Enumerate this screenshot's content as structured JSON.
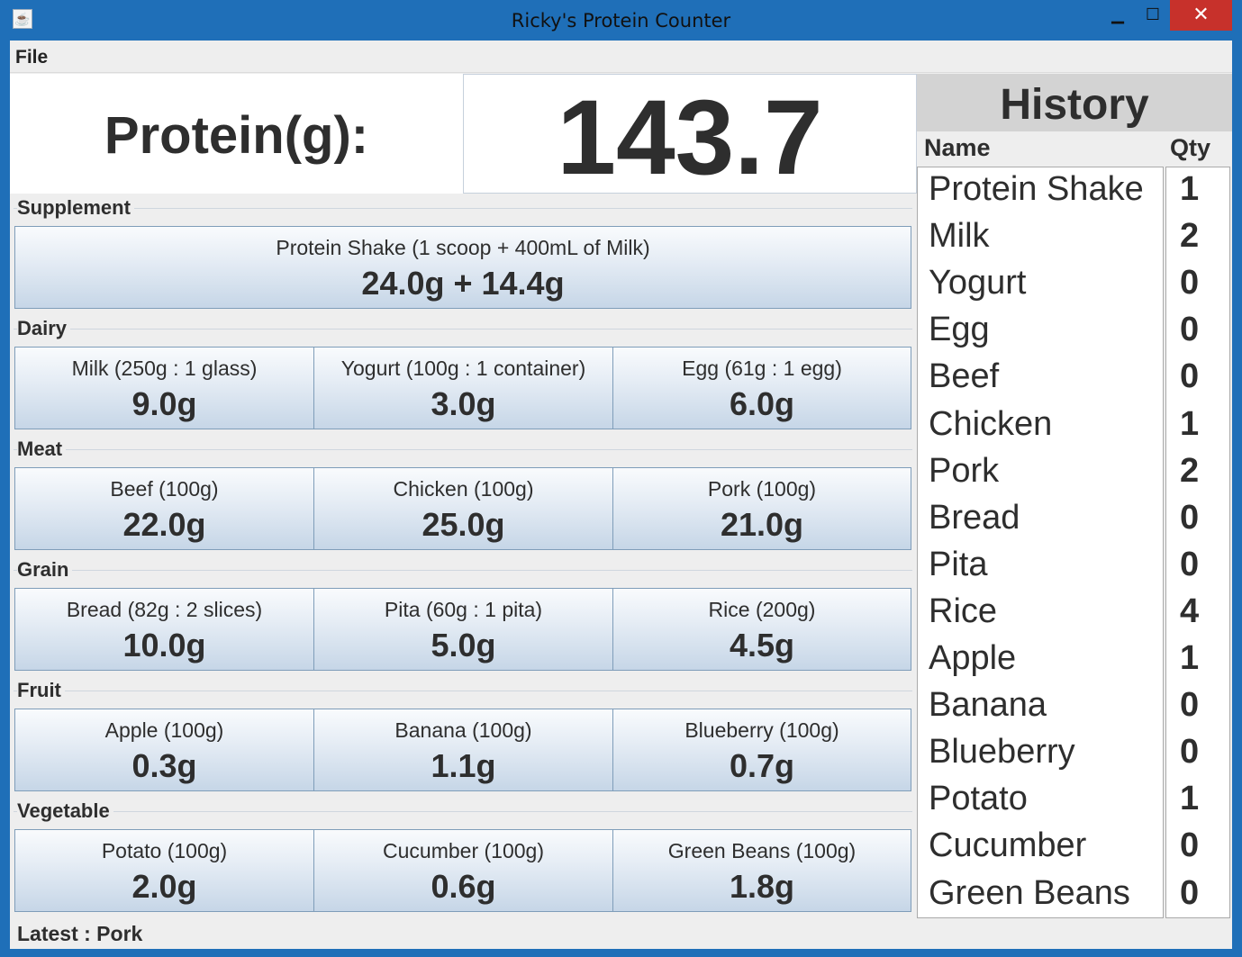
{
  "window": {
    "title": "Ricky's Protein Counter",
    "app_icon": "java-cup-icon"
  },
  "menu": {
    "file": "File"
  },
  "protein": {
    "label": "Protein(g):",
    "value": "143.7"
  },
  "groups": {
    "supplement": {
      "title": "Supplement",
      "items": [
        {
          "name": "Protein Shake (1 scoop + 400mL of Milk)",
          "value": "24.0g + 14.4g"
        }
      ]
    },
    "dairy": {
      "title": "Dairy",
      "items": [
        {
          "name": "Milk (250g : 1 glass)",
          "value": "9.0g"
        },
        {
          "name": "Yogurt (100g : 1 container)",
          "value": "3.0g"
        },
        {
          "name": "Egg (61g : 1 egg)",
          "value": "6.0g"
        }
      ]
    },
    "meat": {
      "title": "Meat",
      "items": [
        {
          "name": "Beef (100g)",
          "value": "22.0g"
        },
        {
          "name": "Chicken (100g)",
          "value": "25.0g"
        },
        {
          "name": "Pork (100g)",
          "value": "21.0g"
        }
      ]
    },
    "grain": {
      "title": "Grain",
      "items": [
        {
          "name": "Bread (82g : 2 slices)",
          "value": "10.0g"
        },
        {
          "name": "Pita (60g : 1 pita)",
          "value": "5.0g"
        },
        {
          "name": "Rice (200g)",
          "value": "4.5g"
        }
      ]
    },
    "fruit": {
      "title": "Fruit",
      "items": [
        {
          "name": "Apple (100g)",
          "value": "0.3g"
        },
        {
          "name": "Banana (100g)",
          "value": "1.1g"
        },
        {
          "name": "Blueberry (100g)",
          "value": "0.7g"
        }
      ]
    },
    "vegetable": {
      "title": "Vegetable",
      "items": [
        {
          "name": "Potato (100g)",
          "value": "2.0g"
        },
        {
          "name": "Cucumber (100g)",
          "value": "0.6g"
        },
        {
          "name": "Green Beans (100g)",
          "value": "1.8g"
        }
      ]
    }
  },
  "status": {
    "latest": "Latest : Pork"
  },
  "history": {
    "title": "History",
    "col_name": "Name",
    "col_qty": "Qty",
    "rows": [
      {
        "name": "Protein Shake",
        "qty": "1"
      },
      {
        "name": "Milk",
        "qty": "2"
      },
      {
        "name": "Yogurt",
        "qty": "0"
      },
      {
        "name": "Egg",
        "qty": "0"
      },
      {
        "name": "Beef",
        "qty": "0"
      },
      {
        "name": "Chicken",
        "qty": "1"
      },
      {
        "name": "Pork",
        "qty": "2"
      },
      {
        "name": "Bread",
        "qty": "0"
      },
      {
        "name": "Pita",
        "qty": "0"
      },
      {
        "name": "Rice",
        "qty": "4"
      },
      {
        "name": "Apple",
        "qty": "1"
      },
      {
        "name": "Banana",
        "qty": "0"
      },
      {
        "name": "Blueberry",
        "qty": "0"
      },
      {
        "name": "Potato",
        "qty": "1"
      },
      {
        "name": "Cucumber",
        "qty": "0"
      },
      {
        "name": "Green Beans",
        "qty": "0"
      }
    ]
  }
}
